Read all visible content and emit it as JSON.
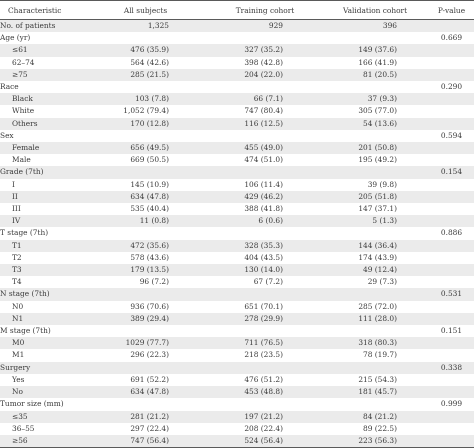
{
  "table": {
    "headers": [
      "Characteristic",
      "All subjects",
      "Training cohort",
      "Validation cohort",
      "P-value"
    ],
    "rows": [
      {
        "label": "No. of patients",
        "indent": false,
        "all": "1,325",
        "train": "929",
        "valid": "396",
        "p": ""
      },
      {
        "label": "Age (yr)",
        "indent": false,
        "all": "",
        "train": "",
        "valid": "",
        "p": "0.669"
      },
      {
        "label": "≤61",
        "indent": true,
        "all": "476 (35.9)",
        "train": "327 (35.2)",
        "valid": "149 (37.6)",
        "p": ""
      },
      {
        "label": "62–74",
        "indent": true,
        "all": "564 (42.6)",
        "train": "398 (42.8)",
        "valid": "166 (41.9)",
        "p": ""
      },
      {
        "label": "≥75",
        "indent": true,
        "all": "285 (21.5)",
        "train": "204 (22.0)",
        "valid": "81 (20.5)",
        "p": ""
      },
      {
        "label": "Race",
        "indent": false,
        "all": "",
        "train": "",
        "valid": "",
        "p": "0.290"
      },
      {
        "label": "Black",
        "indent": true,
        "all": "103 (7.8)",
        "train": "66 (7.1)",
        "valid": "37 (9.3)",
        "p": ""
      },
      {
        "label": "White",
        "indent": true,
        "all": "1,052 (79.4)",
        "train": "747 (80.4)",
        "valid": "305 (77.0)",
        "p": ""
      },
      {
        "label": "Others",
        "indent": true,
        "all": "170 (12.8)",
        "train": "116 (12.5)",
        "valid": "54 (13.6)",
        "p": ""
      },
      {
        "label": "Sex",
        "indent": false,
        "all": "",
        "train": "",
        "valid": "",
        "p": "0.594"
      },
      {
        "label": "Female",
        "indent": true,
        "all": "656 (49.5)",
        "train": "455 (49.0)",
        "valid": "201 (50.8)",
        "p": ""
      },
      {
        "label": "Male",
        "indent": true,
        "all": "669 (50.5)",
        "train": "474 (51.0)",
        "valid": "195 (49.2)",
        "p": ""
      },
      {
        "label": "Grade (7th)",
        "indent": false,
        "all": "",
        "train": "",
        "valid": "",
        "p": "0.154"
      },
      {
        "label": "I",
        "indent": true,
        "all": "145 (10.9)",
        "train": "106 (11.4)",
        "valid": "39 (9.8)",
        "p": ""
      },
      {
        "label": "II",
        "indent": true,
        "all": "634 (47.8)",
        "train": "429 (46.2)",
        "valid": "205 (51.8)",
        "p": ""
      },
      {
        "label": "III",
        "indent": true,
        "all": "535 (40.4)",
        "train": "388 (41.8)",
        "valid": "147 (37.1)",
        "p": ""
      },
      {
        "label": "IV",
        "indent": true,
        "all": "11 (0.8)",
        "train": "6 (0.6)",
        "valid": "5 (1.3)",
        "p": ""
      },
      {
        "label": "T stage (7th)",
        "indent": false,
        "all": "",
        "train": "",
        "valid": "",
        "p": "0.886"
      },
      {
        "label": "T1",
        "indent": true,
        "all": "472 (35.6)",
        "train": "328 (35.3)",
        "valid": "144 (36.4)",
        "p": ""
      },
      {
        "label": "T2",
        "indent": true,
        "all": "578 (43.6)",
        "train": "404 (43.5)",
        "valid": "174 (43.9)",
        "p": ""
      },
      {
        "label": "T3",
        "indent": true,
        "all": "179 (13.5)",
        "train": "130 (14.0)",
        "valid": "49 (12.4)",
        "p": ""
      },
      {
        "label": "T4",
        "indent": true,
        "all": "96 (7.2)",
        "train": "67 (7.2)",
        "valid": "29 (7.3)",
        "p": ""
      },
      {
        "label": "N stage (7th)",
        "indent": false,
        "all": "",
        "train": "",
        "valid": "",
        "p": "0.531"
      },
      {
        "label": "N0",
        "indent": true,
        "all": "936 (70.6)",
        "train": "651 (70.1)",
        "valid": "285 (72.0)",
        "p": ""
      },
      {
        "label": "N1",
        "indent": true,
        "all": "389 (29.4)",
        "train": "278 (29.9)",
        "valid": "111 (28.0)",
        "p": ""
      },
      {
        "label": "M stage (7th)",
        "indent": false,
        "all": "",
        "train": "",
        "valid": "",
        "p": "0.151"
      },
      {
        "label": "M0",
        "indent": true,
        "all": "1029 (77.7)",
        "train": "711 (76.5)",
        "valid": "318 (80.3)",
        "p": ""
      },
      {
        "label": "M1",
        "indent": true,
        "all": "296 (22.3)",
        "train": "218 (23.5)",
        "valid": "78 (19.7)",
        "p": ""
      },
      {
        "label": "Surgery",
        "indent": false,
        "all": "",
        "train": "",
        "valid": "",
        "p": "0.338"
      },
      {
        "label": "Yes",
        "indent": true,
        "all": "691 (52.2)",
        "train": "476 (51.2)",
        "valid": "215 (54.3)",
        "p": ""
      },
      {
        "label": "No",
        "indent": true,
        "all": "634 (47.8)",
        "train": "453 (48.8)",
        "valid": "181 (45.7)",
        "p": ""
      },
      {
        "label": "Tumor size (mm)",
        "indent": false,
        "all": "",
        "train": "",
        "valid": "",
        "p": "0.999"
      },
      {
        "label": "≤35",
        "indent": true,
        "all": "281 (21.2)",
        "train": "197 (21.2)",
        "valid": "84 (21.2)",
        "p": ""
      },
      {
        "label": "36–55",
        "indent": true,
        "all": "297 (22.4)",
        "train": "208 (22.4)",
        "valid": "89 (22.5)",
        "p": ""
      },
      {
        "label": "≥56",
        "indent": true,
        "all": "747 (56.4)",
        "train": "524 (56.4)",
        "valid": "223 (56.3)",
        "p": ""
      }
    ]
  }
}
